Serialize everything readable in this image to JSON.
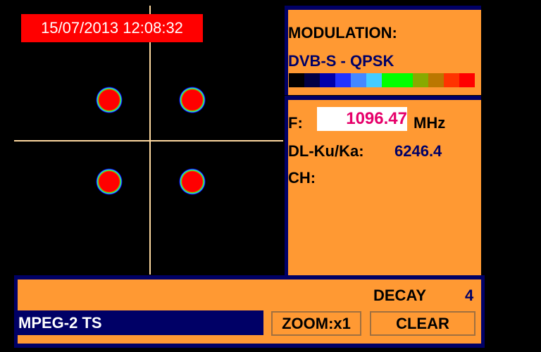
{
  "timestamp": "15/07/2013 12:08:32",
  "modulation": {
    "label": "MODULATION:",
    "value": "DVB-S - QPSK",
    "color_scale": [
      "#000000",
      "#000044",
      "#0000aa",
      "#2233ff",
      "#4488ff",
      "#44ccff",
      "#00ff00",
      "#00ff00",
      "#88aa00",
      "#bb7700",
      "#ff3300",
      "#ff0000"
    ]
  },
  "frequency": {
    "label": "F:",
    "value": "1096.47",
    "unit": "MHz",
    "dl_label": "DL-Ku/Ka:",
    "dl_value": "6246.4",
    "ch_label": "CH:"
  },
  "bottom": {
    "decay_label": "DECAY",
    "decay_value": "4",
    "stream_type": "MPEG-2 TS",
    "zoom_label": "ZOOM:x1",
    "clear_label": "CLEAR"
  },
  "colors": {
    "accent": "#ff9933",
    "navy": "#000066",
    "timestamp_bg": "#ff0000",
    "freq_value": "#e6006a"
  }
}
